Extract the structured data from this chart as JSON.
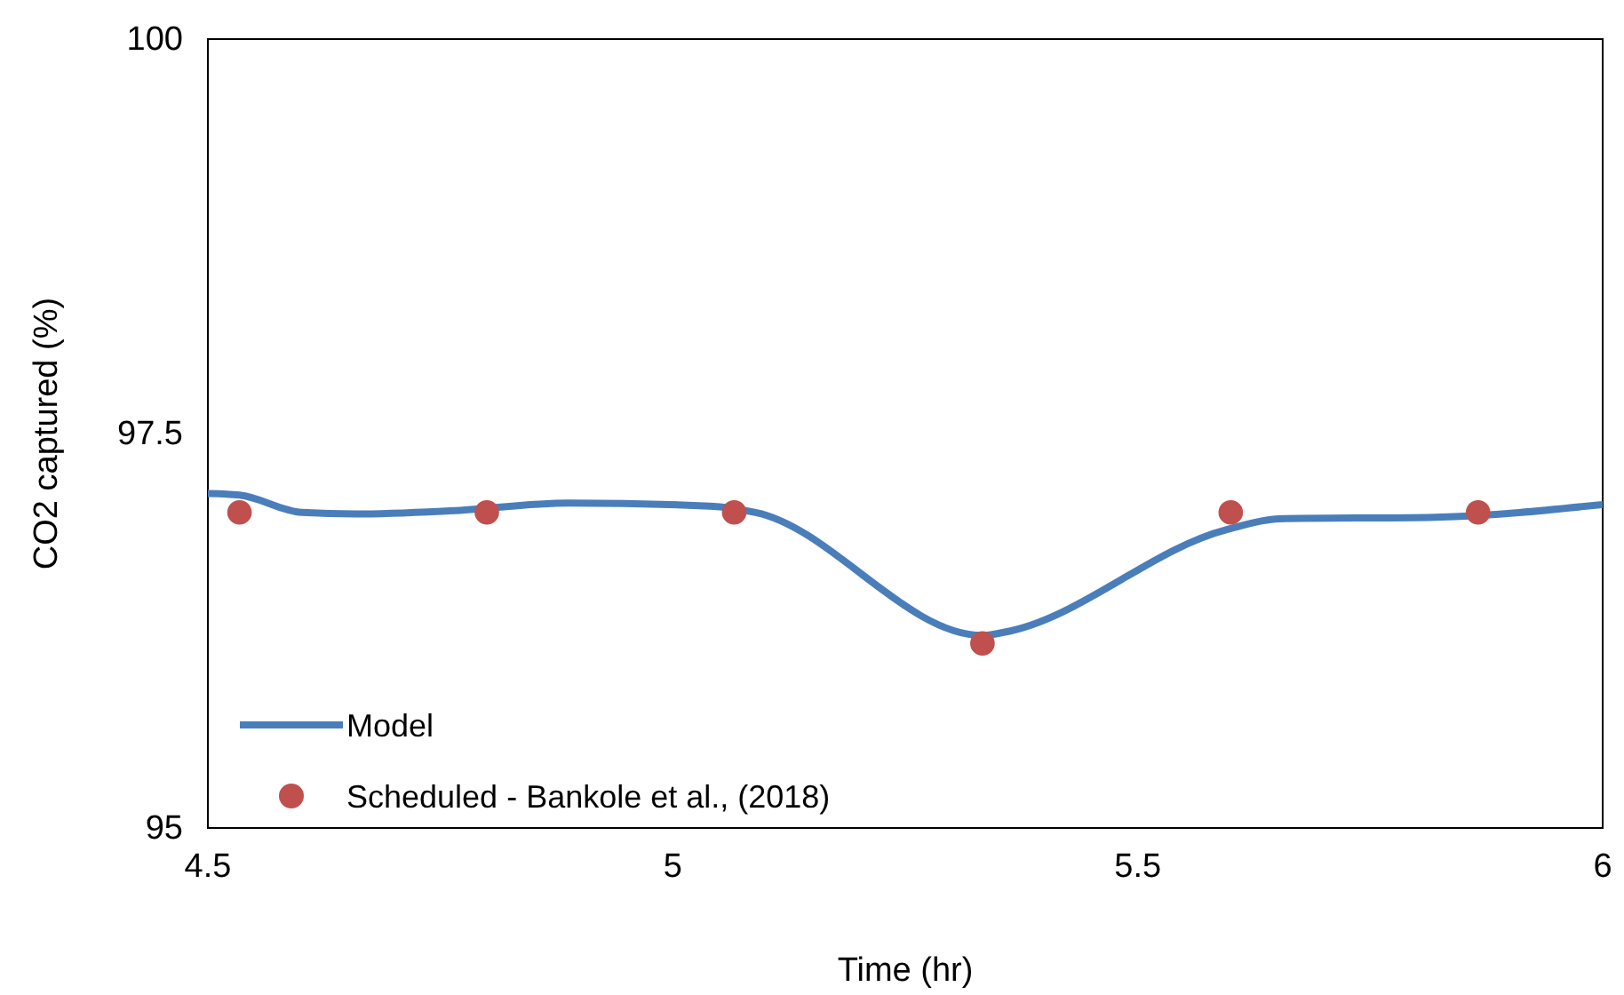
{
  "chart_data": {
    "type": "line",
    "xlabel": "Time (hr)",
    "ylabel": "CO2 captured (%)",
    "xlim": [
      4.5,
      6
    ],
    "xticks": [
      4.5,
      5,
      5.5,
      6
    ],
    "ylim": [
      95,
      100
    ],
    "yticks": [
      95,
      97.5,
      100
    ],
    "grid": false,
    "legend": "bottom left",
    "series": [
      {
        "name": "Model",
        "color": "#4a7ebb",
        "line_style": "solid",
        "x": [
          4.5,
          4.534,
          4.601,
          4.659,
          4.76,
          4.888,
          5.04,
          5.089,
          5.333,
          5.356,
          5.595,
          5.652,
          5.82,
          6.0
        ],
        "values": [
          97.12,
          97.11,
          97.0,
          96.99,
          97.01,
          97.06,
          97.04,
          97.0,
          96.22,
          96.24,
          96.89,
          96.96,
          96.97,
          97.05
        ]
      },
      {
        "name": "Scheduled - Bankole et al., (2018)",
        "type": "scatter",
        "marker": "circle",
        "color": "#c0504d",
        "x": [
          4.534,
          4.8,
          5.066,
          5.333,
          5.6,
          5.866
        ],
        "values": [
          97.0,
          97.0,
          97.0,
          96.17,
          97.0,
          97.0
        ]
      }
    ]
  }
}
